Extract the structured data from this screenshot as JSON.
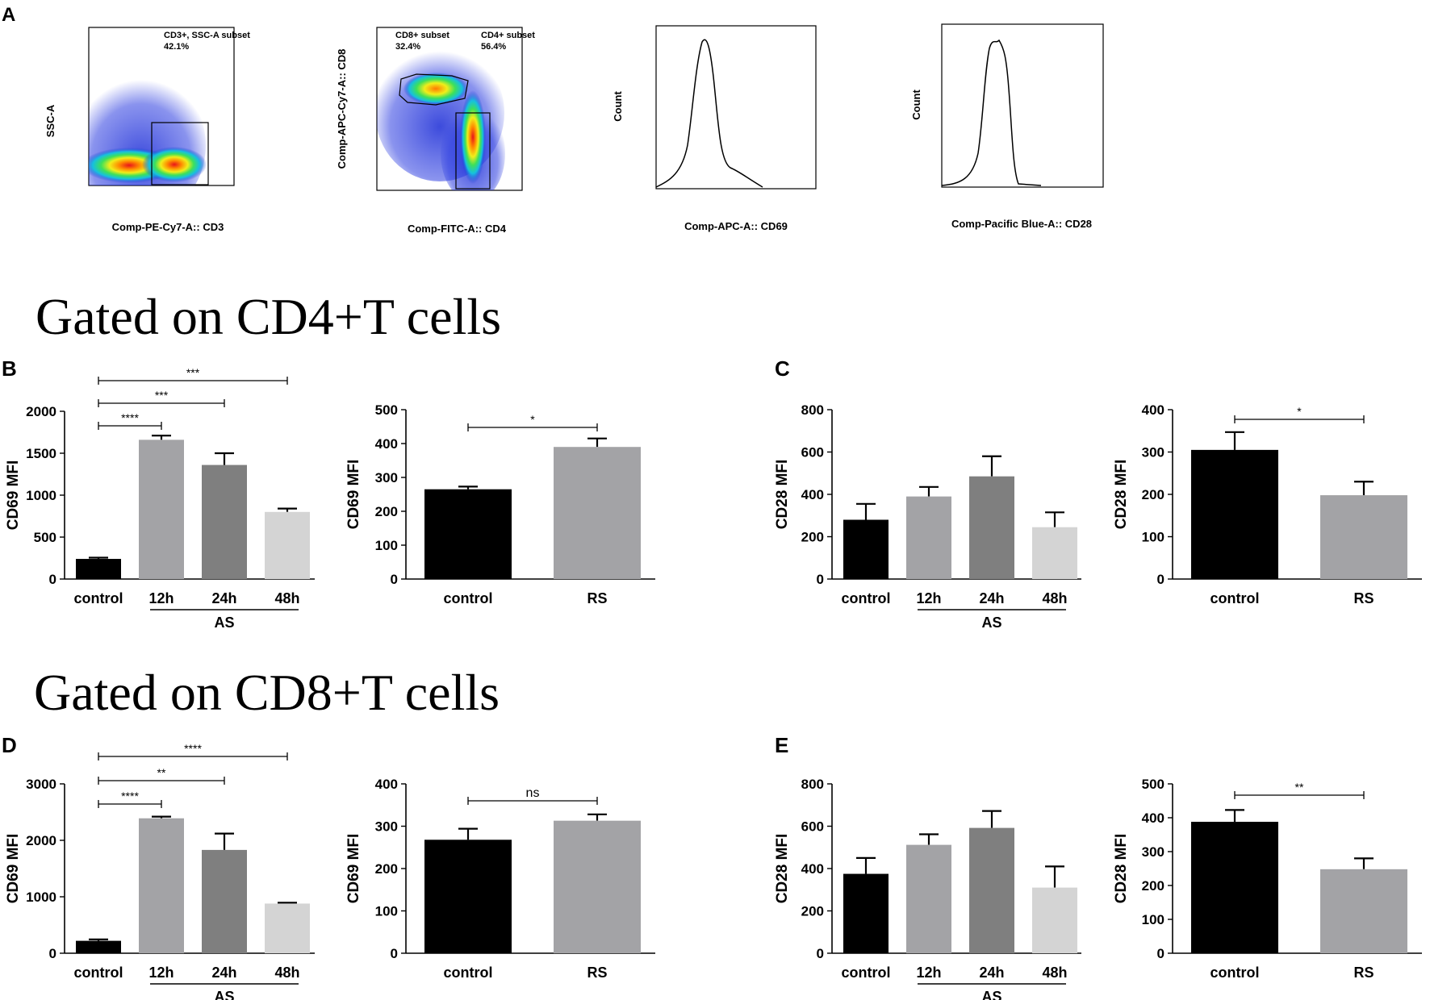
{
  "panel_letters": {
    "a": "A",
    "b": "B",
    "c": "C",
    "d": "D",
    "e": "E"
  },
  "sections": {
    "cd4": "Gated on CD4+T cells",
    "cd8": "Gated on CD8+T cells"
  },
  "flow": {
    "p1": {
      "ylabel": "SSC-A",
      "xlabel": "Comp-PE-Cy7-A:: CD3",
      "gate_label": "CD3+, SSC-A subset",
      "gate_value": "42.1%"
    },
    "p2": {
      "ylabel": "Comp-APC-Cy7-A:: CD8",
      "xlabel": "Comp-FITC-A:: CD4",
      "gate1_label": "CD8+ subset",
      "gate1_value": "32.4%",
      "gate2_label": "CD4+ subset",
      "gate2_value": "56.4%"
    },
    "p3": {
      "ylabel": "Count",
      "xlabel": "Comp-APC-A:: CD69"
    },
    "p4": {
      "ylabel": "Count",
      "xlabel": "Comp-Pacific Blue-A:: CD28"
    }
  },
  "chart_data": [
    {
      "id": "B1",
      "type": "bar",
      "ylabel": "CD69 MFI",
      "ylim": [
        0,
        2000
      ],
      "yticks": [
        0,
        500,
        1000,
        1500,
        2000
      ],
      "categories": [
        "control",
        "12h",
        "24h",
        "48h"
      ],
      "values": [
        240,
        1660,
        1360,
        800
      ],
      "errors": [
        15,
        50,
        140,
        40
      ],
      "group_label": "AS",
      "sig": [
        {
          "from": 0,
          "to": 1,
          "label": "****"
        },
        {
          "from": 0,
          "to": 2,
          "label": "***"
        },
        {
          "from": 0,
          "to": 3,
          "label": "***"
        }
      ]
    },
    {
      "id": "B2",
      "type": "bar",
      "ylabel": "CD69 MFI",
      "ylim": [
        0,
        500
      ],
      "yticks": [
        0,
        100,
        200,
        300,
        400,
        500
      ],
      "categories": [
        "control",
        "RS"
      ],
      "values": [
        265,
        390
      ],
      "errors": [
        8,
        25
      ],
      "sig": [
        {
          "from": 0,
          "to": 1,
          "label": "*"
        }
      ]
    },
    {
      "id": "C1",
      "type": "bar",
      "ylabel": "CD28 MFI",
      "ylim": [
        0,
        800
      ],
      "yticks": [
        0,
        200,
        400,
        600,
        800
      ],
      "categories": [
        "control",
        "12h",
        "24h",
        "48h"
      ],
      "values": [
        280,
        390,
        485,
        245
      ],
      "errors": [
        75,
        45,
        95,
        70
      ],
      "group_label": "AS",
      "sig": []
    },
    {
      "id": "C2",
      "type": "bar",
      "ylabel": "CD28 MFI",
      "ylim": [
        0,
        400
      ],
      "yticks": [
        0,
        100,
        200,
        300,
        400
      ],
      "categories": [
        "control",
        "RS"
      ],
      "values": [
        305,
        198
      ],
      "errors": [
        42,
        32
      ],
      "sig": [
        {
          "from": 0,
          "to": 1,
          "label": "*"
        }
      ]
    },
    {
      "id": "D1",
      "type": "bar",
      "ylabel": "CD69 MFI",
      "ylim": [
        0,
        3000
      ],
      "yticks": [
        0,
        1000,
        2000,
        3000
      ],
      "categories": [
        "control",
        "12h",
        "24h",
        "48h"
      ],
      "values": [
        220,
        2390,
        1830,
        880
      ],
      "errors": [
        25,
        30,
        290,
        15
      ],
      "group_label": "AS",
      "sig": [
        {
          "from": 0,
          "to": 1,
          "label": "****"
        },
        {
          "from": 0,
          "to": 2,
          "label": "**"
        },
        {
          "from": 0,
          "to": 3,
          "label": "****"
        }
      ]
    },
    {
      "id": "D2",
      "type": "bar",
      "ylabel": "CD69 MFI",
      "ylim": [
        0,
        400
      ],
      "yticks": [
        0,
        100,
        200,
        300,
        400
      ],
      "categories": [
        "control",
        "RS"
      ],
      "values": [
        268,
        313
      ],
      "errors": [
        26,
        15
      ],
      "sig": [
        {
          "from": 0,
          "to": 1,
          "label": "ns"
        }
      ]
    },
    {
      "id": "E1",
      "type": "bar",
      "ylabel": "CD28 MFI",
      "ylim": [
        0,
        800
      ],
      "yticks": [
        0,
        200,
        400,
        600,
        800
      ],
      "categories": [
        "control",
        "12h",
        "24h",
        "48h"
      ],
      "values": [
        375,
        512,
        592,
        310
      ],
      "errors": [
        75,
        50,
        80,
        100
      ],
      "group_label": "AS",
      "sig": []
    },
    {
      "id": "E2",
      "type": "bar",
      "ylabel": "CD28 MFI",
      "ylim": [
        0,
        500
      ],
      "yticks": [
        0,
        100,
        200,
        300,
        400,
        500
      ],
      "categories": [
        "control",
        "RS"
      ],
      "values": [
        388,
        248
      ],
      "errors": [
        35,
        32
      ],
      "sig": [
        {
          "from": 0,
          "to": 1,
          "label": "**"
        }
      ]
    }
  ],
  "colors": {
    "control": "#000000",
    "12h": "#a3a3a6",
    "24h": "#7f7f7f",
    "48h": "#d4d4d4",
    "RS": "#a3a3a6"
  }
}
